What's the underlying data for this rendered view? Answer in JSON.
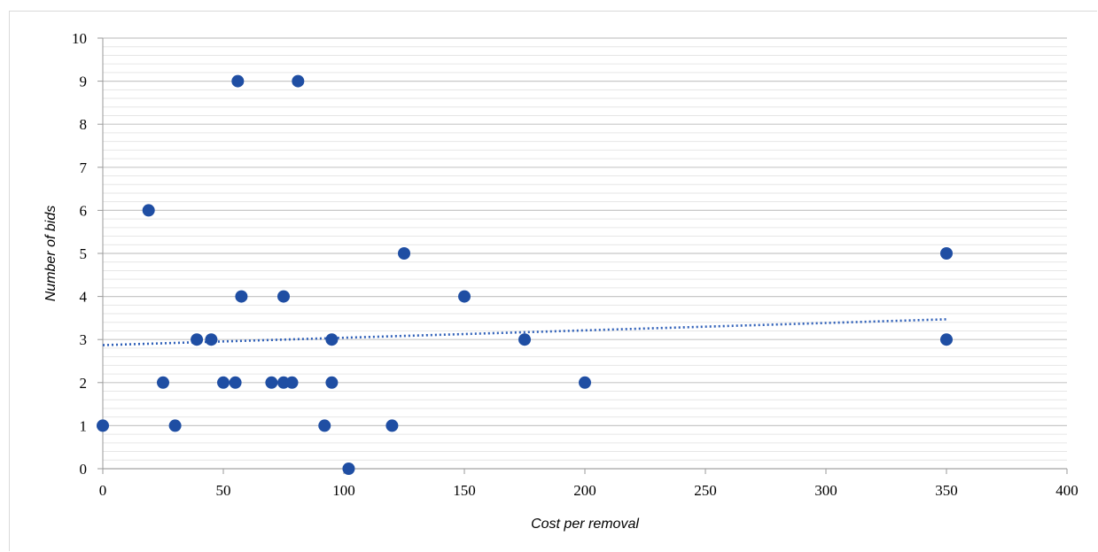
{
  "chart_data": {
    "type": "scatter",
    "title": "",
    "xlabel": "Cost per removal",
    "ylabel": "Number of bids",
    "xlim": [
      0,
      400
    ],
    "ylim": [
      0,
      10
    ],
    "x_ticks": [
      "0",
      "50",
      "100",
      "150",
      "200",
      "250",
      "300",
      "350",
      "400"
    ],
    "y_ticks": [
      "0",
      "1",
      "2",
      "3",
      "4",
      "5",
      "6",
      "7",
      "8",
      "9",
      "10"
    ],
    "grid": "horizontal major and minor",
    "legend": "none",
    "marker_color": "#1f4ea3",
    "trendline": {
      "type": "linear",
      "style": "dotted",
      "color": "#2e5fb8",
      "x_range": [
        0,
        350
      ],
      "start": 2.87,
      "end": 3.47
    },
    "series": [
      {
        "points": [
          [
            0,
            1
          ],
          [
            19,
            6
          ],
          [
            25,
            2
          ],
          [
            30,
            1
          ],
          [
            39,
            3
          ],
          [
            45,
            3
          ],
          [
            50,
            2
          ],
          [
            55,
            2
          ],
          [
            56,
            9
          ],
          [
            57.5,
            4
          ],
          [
            70,
            2
          ],
          [
            75,
            2
          ],
          [
            75,
            4
          ],
          [
            78.5,
            2
          ],
          [
            81,
            9
          ],
          [
            92,
            1
          ],
          [
            95,
            3
          ],
          [
            95,
            2
          ],
          [
            102,
            0
          ],
          [
            120,
            1
          ],
          [
            125,
            5
          ],
          [
            150,
            4
          ],
          [
            175,
            3
          ],
          [
            200,
            2
          ],
          [
            350,
            5
          ],
          [
            350,
            3
          ]
        ]
      }
    ]
  }
}
